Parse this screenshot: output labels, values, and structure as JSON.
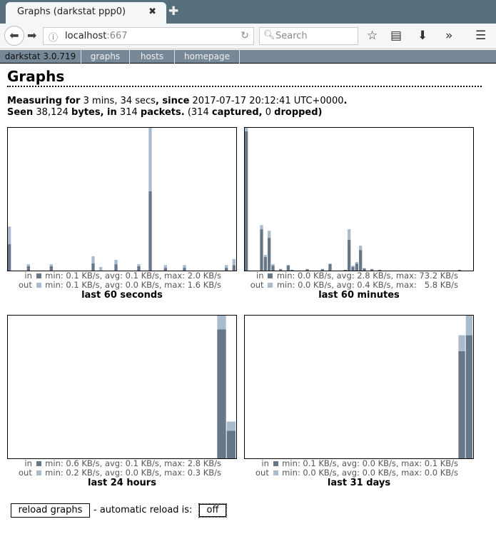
{
  "browser": {
    "tab_title": "Graphs (darkstat ppp0)",
    "url_host": "localhost",
    "url_port": ":667",
    "search_placeholder": "Search"
  },
  "nav": {
    "items": [
      {
        "label": "darkstat 3.0.719"
      },
      {
        "label": "graphs"
      },
      {
        "label": "hosts"
      },
      {
        "label": "homepage"
      }
    ]
  },
  "page": {
    "title": "Graphs",
    "measuring_label": "Measuring for",
    "duration": "3 mins, 34 secs",
    "since_label": ", since",
    "since": "2017-07-17 20:12:41 UTC+0000",
    "period": ".",
    "seen_label": "Seen",
    "bytes": "38,124",
    "bytes_label": "bytes, in",
    "packets": "314",
    "packets_label": "packets.",
    "paren_open": "(",
    "captured": "314",
    "captured_label": "captured,",
    "dropped": "0",
    "dropped_label": "dropped)"
  },
  "colors": {
    "in": "#667788",
    "out": "#aabbcc"
  },
  "chart_data": [
    {
      "type": "bar",
      "stacked": true,
      "title": "last 60 seconds",
      "ylim": [
        0,
        3.6
      ],
      "in_legend": "in ■ min: 0.1 KB/s, avg: 0.1 KB/s, max: 2.0 KB/s",
      "out_legend": "out ■ min: 0.1 KB/s, avg: 0.0 KB/s, max: 1.6 KB/s",
      "series": [
        {
          "name": "in",
          "values": [
            0.67,
            0,
            0,
            0,
            0,
            0.11,
            0,
            0,
            0,
            0,
            0,
            0.11,
            0,
            0,
            0,
            0,
            0,
            0,
            0,
            0,
            0,
            0,
            0.18,
            0,
            0,
            0,
            0,
            0,
            0.16,
            0,
            0,
            0,
            0,
            0,
            0.11,
            0,
            0,
            2.0,
            0,
            0,
            0,
            0.07,
            0,
            0,
            0,
            0,
            0.07,
            0,
            0,
            0,
            0,
            0,
            0,
            0,
            0,
            0,
            0,
            0.07,
            0,
            0.14
          ]
        },
        {
          "name": "out",
          "values": [
            0.44,
            0,
            0,
            0,
            0,
            0.05,
            0,
            0,
            0,
            0,
            0,
            0.05,
            0,
            0,
            0,
            0,
            0,
            0,
            0,
            0,
            0,
            0,
            0.18,
            0,
            0.09,
            0,
            0,
            0,
            0.11,
            0,
            0,
            0,
            0,
            0,
            0.05,
            0,
            0,
            1.6,
            0,
            0,
            0,
            0.07,
            0,
            0,
            0,
            0,
            0.07,
            0,
            0,
            0,
            0,
            0,
            0,
            0,
            0,
            0,
            0,
            0.07,
            0,
            0.15
          ]
        }
      ]
    },
    {
      "type": "bar",
      "stacked": true,
      "title": "last 60 minutes",
      "ylim": [
        0,
        75
      ],
      "in_legend": "in ■ min: 0.0 KB/s, avg: 2.8 KB/s, max: 73.2 KB/s",
      "out_legend": "out ■ min: 0.0 KB/s, avg: 0.4 KB/s, max:   5.8 KB/s",
      "series": [
        {
          "name": "in",
          "values": [
            73.2,
            0,
            0,
            0,
            21.7,
            7.1,
            17.2,
            2.6,
            0,
            0.7,
            0,
            2.6,
            0.4,
            0,
            0,
            0,
            0.7,
            0,
            0,
            0,
            0.7,
            0,
            3.4,
            0,
            0,
            0,
            0.4,
            16.1,
            1.9,
            3.7,
            10.8,
            1.1,
            0,
            0.7,
            0,
            0.4,
            0,
            0,
            0,
            0,
            0,
            0,
            0,
            0,
            0,
            0,
            0,
            0,
            0,
            0,
            0,
            0,
            0,
            0,
            0,
            0,
            0.4,
            0,
            0,
            0
          ]
        },
        {
          "name": "out",
          "values": [
            1.8,
            0,
            0,
            0,
            2.2,
            1.1,
            3.7,
            0.8,
            0,
            0.2,
            0,
            0.4,
            0,
            0,
            0,
            0,
            0.2,
            0,
            0,
            0,
            0.2,
            0,
            0.3,
            0,
            0,
            0,
            0,
            5.6,
            0.7,
            0.8,
            2.3,
            0.2,
            0,
            0.2,
            0,
            0,
            0,
            0,
            0,
            0,
            0,
            0,
            0,
            0,
            0,
            0,
            0,
            0,
            0,
            0,
            0,
            0,
            0,
            0,
            0,
            0,
            0,
            0,
            0,
            0
          ]
        }
      ]
    },
    {
      "type": "bar",
      "stacked": true,
      "title": "last 24 hours",
      "ylim": [
        0,
        3.1
      ],
      "in_legend": "in ■ min: 0.6 KB/s, avg: 0.1 KB/s, max: 2.8 KB/s",
      "out_legend": "out ■ min: 0.2 KB/s, avg: 0.0 KB/s, max: 0.3 KB/s",
      "series": [
        {
          "name": "in",
          "values": [
            0,
            0,
            0,
            0,
            0,
            0,
            0,
            0,
            0,
            0,
            0,
            0,
            0,
            0,
            0,
            0,
            0,
            0,
            0,
            0,
            0,
            0,
            2.8,
            0.6
          ]
        },
        {
          "name": "out",
          "values": [
            0,
            0,
            0,
            0,
            0,
            0,
            0,
            0,
            0,
            0,
            0,
            0,
            0,
            0,
            0,
            0,
            0,
            0,
            0,
            0,
            0,
            0,
            0.3,
            0.2
          ]
        }
      ]
    },
    {
      "type": "bar",
      "stacked": true,
      "title": "last 31 days",
      "ylim": [
        0,
        0.116
      ],
      "in_legend": "in ■ min: 0.1 KB/s, avg: 0.0 KB/s, max: 0.1 KB/s",
      "out_legend": "out ■ min: 0.0 KB/s, avg: 0.0 KB/s, max: 0.0 KB/s",
      "series": [
        {
          "name": "in",
          "values": [
            0,
            0,
            0,
            0,
            0,
            0,
            0,
            0,
            0,
            0,
            0,
            0,
            0,
            0,
            0,
            0,
            0,
            0,
            0,
            0,
            0,
            0,
            0,
            0,
            0,
            0,
            0,
            0,
            0,
            0.087,
            0.1
          ]
        },
        {
          "name": "out",
          "values": [
            0,
            0,
            0,
            0,
            0,
            0,
            0,
            0,
            0,
            0,
            0,
            0,
            0,
            0,
            0,
            0,
            0,
            0,
            0,
            0,
            0,
            0,
            0,
            0,
            0,
            0,
            0,
            0,
            0,
            0.013,
            0.016
          ]
        }
      ]
    }
  ],
  "footer": {
    "reload_label": "reload graphs",
    "auto_reload_text": "- automatic reload is:",
    "auto_reload_state": "off"
  }
}
